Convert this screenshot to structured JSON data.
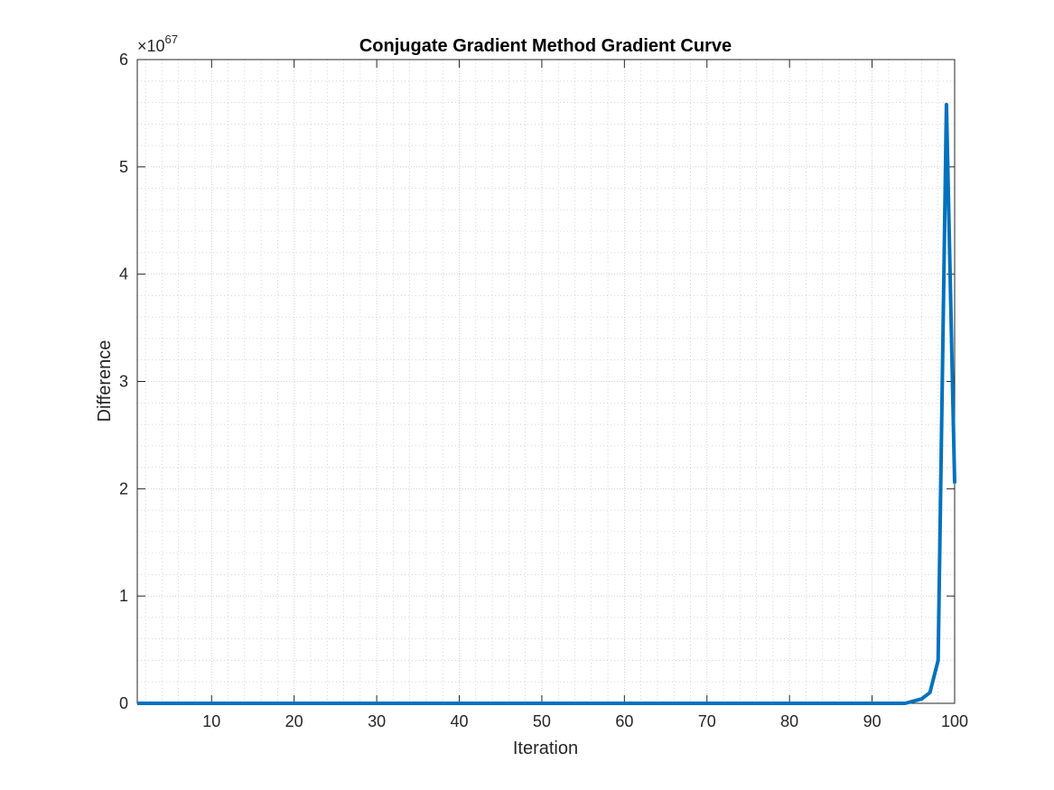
{
  "chart_data": {
    "type": "line",
    "title": "Conjugate Gradient Method Gradient Curve",
    "xlabel": "Iteration",
    "ylabel": "Difference",
    "xlim": [
      1,
      100
    ],
    "ylim": [
      0,
      6
    ],
    "y_exponent_label": {
      "base": "×10",
      "power": "67"
    },
    "xticks": [
      10,
      20,
      30,
      40,
      50,
      60,
      70,
      80,
      90,
      100
    ],
    "yticks": [
      0,
      1,
      2,
      3,
      4,
      5,
      6
    ],
    "xtick_labels": [
      "10",
      "20",
      "30",
      "40",
      "50",
      "60",
      "70",
      "80",
      "90",
      "100"
    ],
    "ytick_labels": [
      "0",
      "1",
      "2",
      "3",
      "4",
      "5",
      "6"
    ],
    "grid": true,
    "minor_grid": true,
    "line_color": "#0072BD",
    "series": [
      {
        "x": [
          1,
          94,
          95,
          96,
          97,
          98,
          99,
          100
        ],
        "y": [
          0,
          0,
          0.02,
          0.04,
          0.1,
          0.4,
          5.58,
          2.05
        ]
      }
    ]
  }
}
